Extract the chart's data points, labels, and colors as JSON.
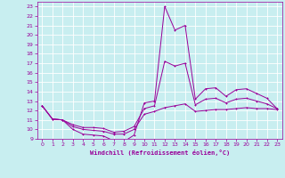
{
  "xlabel": "Windchill (Refroidissement éolien,°C)",
  "ylabel": "",
  "bg_color": "#c8eef0",
  "grid_color": "#ffffff",
  "line_color": "#990099",
  "xlim": [
    -0.5,
    23.5
  ],
  "ylim": [
    9,
    23.5
  ],
  "xticks": [
    0,
    1,
    2,
    3,
    4,
    5,
    6,
    7,
    8,
    9,
    10,
    11,
    12,
    13,
    14,
    15,
    16,
    17,
    18,
    19,
    20,
    21,
    22,
    23
  ],
  "yticks": [
    9,
    10,
    11,
    12,
    13,
    14,
    15,
    16,
    17,
    18,
    19,
    20,
    21,
    22,
    23
  ],
  "line1_x": [
    0,
    1,
    2,
    3,
    4,
    5,
    6,
    7,
    8,
    9,
    10,
    11,
    12,
    13,
    14,
    15,
    16,
    17,
    18,
    19,
    20,
    21,
    22,
    23
  ],
  "line1_y": [
    12.5,
    11.1,
    11.0,
    10.0,
    9.5,
    9.4,
    9.3,
    8.8,
    8.7,
    9.4,
    12.8,
    13.0,
    23.0,
    20.5,
    21.0,
    13.2,
    14.3,
    14.4,
    13.5,
    14.2,
    14.3,
    13.8,
    13.3,
    12.2
  ],
  "line2_x": [
    0,
    1,
    2,
    3,
    4,
    5,
    6,
    7,
    8,
    9,
    10,
    11,
    12,
    13,
    14,
    15,
    16,
    17,
    18,
    19,
    20,
    21,
    22,
    23
  ],
  "line2_y": [
    12.5,
    11.1,
    11.0,
    10.3,
    10.0,
    9.9,
    9.8,
    9.5,
    9.5,
    10.0,
    11.6,
    11.9,
    12.3,
    12.5,
    12.7,
    11.9,
    12.0,
    12.1,
    12.1,
    12.2,
    12.3,
    12.2,
    12.2,
    12.1
  ],
  "line3_x": [
    0,
    1,
    2,
    3,
    4,
    5,
    6,
    7,
    8,
    9,
    10,
    11,
    12,
    13,
    14,
    15,
    16,
    17,
    18,
    19,
    20,
    21,
    22,
    23
  ],
  "line3_y": [
    12.5,
    11.1,
    11.0,
    10.5,
    10.2,
    10.2,
    10.1,
    9.7,
    9.8,
    10.3,
    12.2,
    12.5,
    17.2,
    16.7,
    17.0,
    12.6,
    13.2,
    13.3,
    12.8,
    13.2,
    13.3,
    13.0,
    12.7,
    12.2
  ]
}
